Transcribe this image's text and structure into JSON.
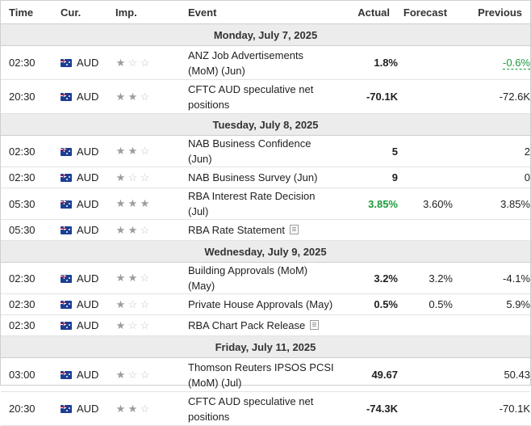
{
  "headers": {
    "time": "Time",
    "cur": "Cur.",
    "imp": "Imp.",
    "event": "Event",
    "actual": "Actual",
    "forecast": "Forecast",
    "previous": "Previous"
  },
  "colors": {
    "positive_green": "#1a9c3a",
    "day_header_bg": "#ececec",
    "star_filled": "#9c9c9c",
    "star_empty": "#c7c7c7"
  },
  "days": [
    {
      "label": "Monday, July 7, 2025",
      "events": [
        {
          "time": "02:30",
          "currency": "AUD",
          "flag": "australia-flag",
          "importance": 1,
          "event": "ANZ Job Advertisements (MoM) (Jun)",
          "actual": "1.8%",
          "forecast": "",
          "previous": "-0.6%",
          "previous_style": "green-ul",
          "actual_style": "",
          "doc": false,
          "tall": true
        },
        {
          "time": "20:30",
          "currency": "AUD",
          "flag": "australia-flag",
          "importance": 2,
          "event": "CFTC AUD speculative net positions",
          "actual": "-70.1K",
          "forecast": "",
          "previous": "-72.6K",
          "previous_style": "",
          "actual_style": "",
          "doc": false,
          "tall": true
        }
      ]
    },
    {
      "label": "Tuesday, July 8, 2025",
      "events": [
        {
          "time": "02:30",
          "currency": "AUD",
          "flag": "australia-flag",
          "importance": 2,
          "event": "NAB Business Confidence (Jun)",
          "actual": "5",
          "forecast": "",
          "previous": "2",
          "previous_style": "",
          "actual_style": "",
          "doc": false,
          "tall": false
        },
        {
          "time": "02:30",
          "currency": "AUD",
          "flag": "australia-flag",
          "importance": 1,
          "event": "NAB Business Survey (Jun)",
          "actual": "9",
          "forecast": "",
          "previous": "0",
          "previous_style": "",
          "actual_style": "",
          "doc": false,
          "tall": false
        },
        {
          "time": "05:30",
          "currency": "AUD",
          "flag": "australia-flag",
          "importance": 3,
          "event": "RBA Interest Rate Decision (Jul)",
          "actual": "3.85%",
          "forecast": "3.60%",
          "previous": "3.85%",
          "previous_style": "",
          "actual_style": "green",
          "doc": false,
          "tall": false
        },
        {
          "time": "05:30",
          "currency": "AUD",
          "flag": "australia-flag",
          "importance": 2,
          "event": "RBA Rate Statement",
          "actual": "",
          "forecast": "",
          "previous": "",
          "previous_style": "",
          "actual_style": "",
          "doc": true,
          "tall": false
        }
      ]
    },
    {
      "label": "Wednesday, July 9, 2025",
      "events": [
        {
          "time": "02:30",
          "currency": "AUD",
          "flag": "australia-flag",
          "importance": 2,
          "event": "Building Approvals (MoM) (May)",
          "actual": "3.2%",
          "forecast": "3.2%",
          "previous": "-4.1%",
          "previous_style": "",
          "actual_style": "",
          "doc": false,
          "tall": false
        },
        {
          "time": "02:30",
          "currency": "AUD",
          "flag": "australia-flag",
          "importance": 1,
          "event": "Private House Approvals (May)",
          "actual": "0.5%",
          "forecast": "0.5%",
          "previous": "5.9%",
          "previous_style": "",
          "actual_style": "",
          "doc": false,
          "tall": false
        },
        {
          "time": "02:30",
          "currency": "AUD",
          "flag": "australia-flag",
          "importance": 1,
          "event": "RBA Chart Pack Release",
          "actual": "",
          "forecast": "",
          "previous": "",
          "previous_style": "",
          "actual_style": "",
          "doc": true,
          "tall": false
        }
      ]
    },
    {
      "label": "Friday, July 11, 2025",
      "events": [
        {
          "time": "03:00",
          "currency": "AUD",
          "flag": "australia-flag",
          "importance": 1,
          "event": "Thomson Reuters IPSOS PCSI (MoM) (Jul)",
          "actual": "49.67",
          "forecast": "",
          "previous": "50.43",
          "previous_style": "",
          "actual_style": "",
          "doc": false,
          "tall": true
        },
        {
          "time": "20:30",
          "currency": "AUD",
          "flag": "australia-flag",
          "importance": 2,
          "event": "CFTC AUD speculative net positions",
          "actual": "-74.3K",
          "forecast": "",
          "previous": "-70.1K",
          "previous_style": "",
          "actual_style": "",
          "doc": false,
          "tall": true
        }
      ]
    }
  ]
}
